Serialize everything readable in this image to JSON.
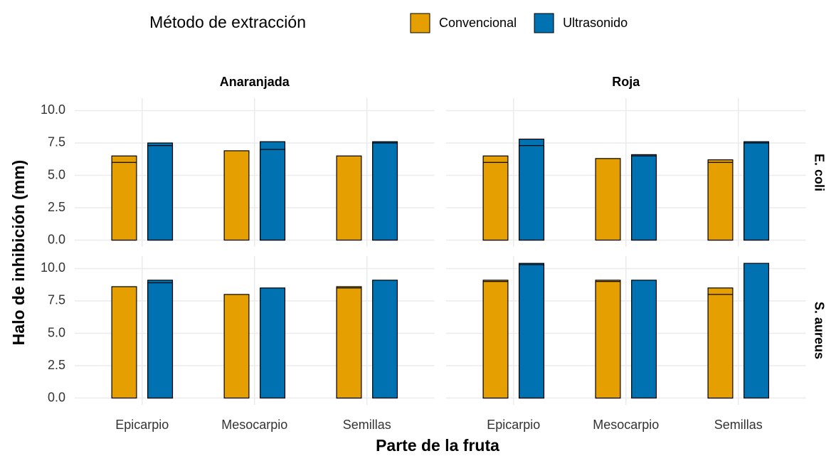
{
  "chart_data": {
    "type": "bar",
    "legend_title": "Método de extracción",
    "y_label": "Halo de inhibición (mm)",
    "x_label": "Parte de la fruta",
    "categories": [
      "Epicarpio",
      "Mesocarpio",
      "Semillas"
    ],
    "facet_columns": [
      "Anaranjada",
      "Roja"
    ],
    "facet_rows": [
      "E. coli",
      "S. aureus"
    ],
    "ylim": [
      -0.52,
      10.96
    ],
    "yticks": [
      {
        "value": 0,
        "label": "0.0"
      },
      2.5,
      {
        "value": 5,
        "label": "5.0"
      },
      7.5,
      {
        "value": 10,
        "label": "10.0"
      }
    ],
    "grid": true,
    "legend_position": "top",
    "series": [
      {
        "name": "Convencional",
        "color": "#E69F00",
        "values": [
          [
            [
              [
                6.5,
                6.0
              ],
              [
                6.9
              ],
              [
                6.5
              ]
            ],
            [
              [
                6.5,
                6.0
              ],
              [
                6.3
              ],
              [
                6.2,
                6.0
              ]
            ]
          ],
          [
            [
              [
                8.6
              ],
              [
                8.0
              ],
              [
                8.6,
                8.5
              ]
            ],
            [
              [
                9.1,
                9.0
              ],
              [
                9.1,
                9.0
              ],
              [
                8.5,
                8.0
              ]
            ]
          ]
        ]
      },
      {
        "name": "Ultrasonido",
        "color": "#0072B2",
        "values": [
          [
            [
              [
                7.5,
                7.3
              ],
              [
                7.6,
                7.0
              ],
              [
                7.6,
                7.5
              ]
            ],
            [
              [
                7.8,
                7.3
              ],
              [
                6.6,
                6.5
              ],
              [
                7.6,
                7.5
              ]
            ]
          ],
          [
            [
              [
                9.1,
                8.9
              ],
              [
                8.5
              ],
              [
                9.1
              ]
            ],
            [
              [
                10.4,
                10.3
              ],
              [
                9.1
              ],
              [
                10.4
              ]
            ]
          ]
        ]
      }
    ]
  }
}
